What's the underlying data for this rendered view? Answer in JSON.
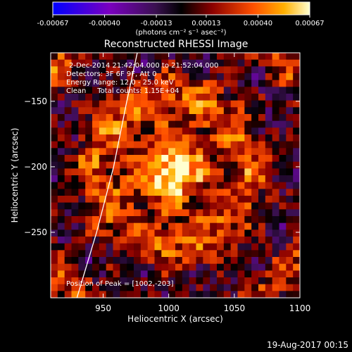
{
  "chart_data": {
    "type": "heatmap",
    "title": "Reconstructed RHESSI Image",
    "xlabel": "Heliocentric X (arcsec)",
    "ylabel": "Heliocentric Y (arcsec)",
    "xlim": [
      910,
      1100
    ],
    "ylim": [
      -300,
      -113
    ],
    "xticks": [
      950,
      1000,
      1050,
      1100
    ],
    "yticks": [
      -150,
      -200,
      -250
    ],
    "colorbar": {
      "ticks": [
        "-0.00067",
        "-0.00040",
        "-0.00013",
        "0.00013",
        "0.00040",
        "0.00067"
      ],
      "range": [
        -0.00067,
        0.00067
      ],
      "units": "(photons cm⁻² s⁻¹ asec⁻²)"
    },
    "annotations": [
      "2-Dec-2014 21:42:04.000 to 21:52:04.000",
      "Detectors: 3F 6F 9F, Att 0",
      "Energy Range: 12.0 - 25.0 keV",
      "Clean     Total counts: 1.15E+04"
    ],
    "peak_label": "Position of Peak = [1002,-203]",
    "peak": [
      1002,
      -203
    ],
    "limb_curve": [
      [
        930,
        -300
      ],
      [
        945,
        -250
      ],
      [
        958,
        -200
      ],
      [
        968,
        -150
      ],
      [
        976,
        -113
      ]
    ],
    "colormap": [
      "#0000ff",
      "#7a00c0",
      "#3a1050",
      "#000000",
      "#8b0000",
      "#ff5000",
      "#ffb000",
      "#ffffd0"
    ]
  },
  "footer": {
    "timestamp": "19-Aug-2017 00:15"
  }
}
